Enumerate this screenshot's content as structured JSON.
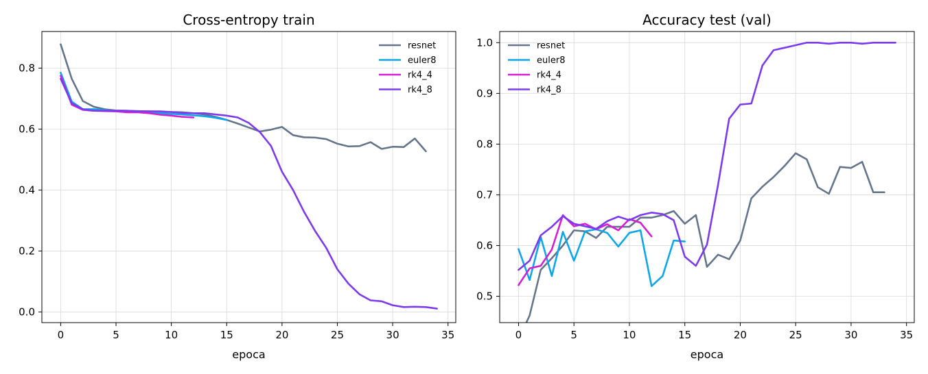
{
  "chart_data": [
    {
      "type": "line",
      "title": "Cross-entropy train",
      "xlabel": "epoca",
      "ylabel": "",
      "xlim": [
        -1.7,
        35.7
      ],
      "ylim": [
        -0.035,
        0.92
      ],
      "xticks": [
        0,
        5,
        10,
        15,
        20,
        25,
        30,
        35
      ],
      "yticks": [
        0.0,
        0.2,
        0.4,
        0.6,
        0.8
      ],
      "ytick_decimals": 1,
      "grid": true,
      "legend_position": "top-right",
      "series": [
        {
          "name": "resnet",
          "color": "#64748b",
          "x": [
            0,
            1,
            2,
            3,
            4,
            5,
            6,
            7,
            8,
            9,
            10,
            11,
            12,
            13,
            14,
            15,
            16,
            17,
            18,
            19,
            20,
            21,
            22,
            23,
            24,
            25,
            26,
            27,
            28,
            29,
            30,
            31,
            32,
            33
          ],
          "y": [
            0.878,
            0.765,
            0.692,
            0.673,
            0.665,
            0.661,
            0.66,
            0.659,
            0.658,
            0.657,
            0.656,
            0.655,
            0.652,
            0.648,
            0.64,
            0.63,
            0.618,
            0.605,
            0.592,
            0.598,
            0.607,
            0.58,
            0.573,
            0.572,
            0.567,
            0.552,
            0.543,
            0.544,
            0.557,
            0.535,
            0.542,
            0.541,
            0.569,
            0.527
          ]
        },
        {
          "name": "euler8",
          "color": "#0ea5e9",
          "x": [
            0,
            1,
            2,
            3,
            4,
            5,
            6,
            7,
            8,
            9,
            10,
            11,
            12,
            13,
            14,
            15
          ],
          "y": [
            0.785,
            0.69,
            0.665,
            0.665,
            0.662,
            0.66,
            0.658,
            0.656,
            0.655,
            0.652,
            0.65,
            0.648,
            0.645,
            0.642,
            0.637,
            0.63
          ]
        },
        {
          "name": "rk4_4",
          "color": "#d11fd1",
          "x": [
            0,
            1,
            2,
            3,
            4,
            5,
            6,
            7,
            8,
            9,
            10,
            11,
            12
          ],
          "y": [
            0.775,
            0.68,
            0.663,
            0.66,
            0.659,
            0.658,
            0.655,
            0.655,
            0.652,
            0.647,
            0.644,
            0.64,
            0.638
          ]
        },
        {
          "name": "rk4_8",
          "color": "#7c3aed",
          "x": [
            0,
            1,
            2,
            3,
            4,
            5,
            6,
            7,
            8,
            9,
            10,
            11,
            12,
            13,
            14,
            15,
            16,
            17,
            18,
            19,
            20,
            21,
            22,
            23,
            24,
            25,
            26,
            27,
            28,
            29,
            30,
            31,
            32,
            33,
            34
          ],
          "y": [
            0.765,
            0.685,
            0.665,
            0.66,
            0.66,
            0.66,
            0.66,
            0.658,
            0.658,
            0.658,
            0.656,
            0.653,
            0.652,
            0.652,
            0.648,
            0.644,
            0.638,
            0.62,
            0.59,
            0.545,
            0.46,
            0.4,
            0.328,
            0.265,
            0.21,
            0.14,
            0.093,
            0.058,
            0.038,
            0.035,
            0.022,
            0.016,
            0.017,
            0.016,
            0.011
          ]
        }
      ]
    },
    {
      "type": "line",
      "title": "Accuracy test (val)",
      "xlabel": "epoca",
      "ylabel": "",
      "xlim": [
        -1.7,
        35.7
      ],
      "ylim": [
        0.448,
        1.022
      ],
      "xticks": [
        0,
        5,
        10,
        15,
        20,
        25,
        30,
        35
      ],
      "yticks": [
        0.5,
        0.6,
        0.7,
        0.8,
        0.9,
        1.0
      ],
      "ytick_decimals": 1,
      "grid": true,
      "legend_position": "top-left",
      "series": [
        {
          "name": "resnet",
          "color": "#64748b",
          "x": [
            0.7,
            1,
            2,
            3,
            4,
            5,
            6,
            7,
            8,
            9,
            10,
            11,
            12,
            13,
            14,
            15,
            16,
            17,
            18,
            19,
            20,
            21,
            22,
            23,
            24,
            25,
            26,
            27,
            28,
            29,
            30,
            31,
            32,
            33
          ],
          "y": [
            0.448,
            0.462,
            0.552,
            0.575,
            0.6,
            0.63,
            0.628,
            0.615,
            0.637,
            0.637,
            0.637,
            0.655,
            0.655,
            0.66,
            0.668,
            0.643,
            0.66,
            0.558,
            0.582,
            0.573,
            0.61,
            0.693,
            0.716,
            0.735,
            0.757,
            0.782,
            0.77,
            0.715,
            0.702,
            0.755,
            0.753,
            0.765,
            0.705,
            0.705
          ]
        },
        {
          "name": "euler8",
          "color": "#0ea5e9",
          "x": [
            0,
            1,
            2,
            3,
            4,
            5,
            6,
            7,
            8,
            9,
            10,
            11,
            12,
            13,
            14,
            15
          ],
          "y": [
            0.593,
            0.532,
            0.617,
            0.54,
            0.627,
            0.57,
            0.628,
            0.632,
            0.625,
            0.598,
            0.625,
            0.63,
            0.52,
            0.54,
            0.61,
            0.608
          ]
        },
        {
          "name": "rk4_4",
          "color": "#d11fd1",
          "x": [
            0,
            1,
            2,
            3,
            4,
            5,
            6,
            7,
            8,
            9,
            10,
            11,
            12
          ],
          "y": [
            0.522,
            0.555,
            0.56,
            0.592,
            0.66,
            0.638,
            0.643,
            0.632,
            0.642,
            0.63,
            0.652,
            0.645,
            0.618
          ]
        },
        {
          "name": "rk4_8",
          "color": "#7c3aed",
          "x": [
            0,
            1,
            2,
            3,
            4,
            5,
            6,
            7,
            8,
            9,
            10,
            11,
            12,
            13,
            14,
            15,
            16,
            17,
            18,
            19,
            20,
            21,
            22,
            23,
            24,
            25,
            26,
            27,
            28,
            29,
            30,
            31,
            32,
            33,
            34
          ],
          "y": [
            0.552,
            0.57,
            0.62,
            0.637,
            0.658,
            0.643,
            0.638,
            0.633,
            0.648,
            0.657,
            0.65,
            0.66,
            0.665,
            0.662,
            0.65,
            0.578,
            0.56,
            0.602,
            0.72,
            0.85,
            0.878,
            0.88,
            0.955,
            0.985,
            0.99,
            0.995,
            1.0,
            1.0,
            0.998,
            1.0,
            1.0,
            0.998,
            1.0,
            1.0,
            1.0
          ]
        }
      ]
    }
  ]
}
